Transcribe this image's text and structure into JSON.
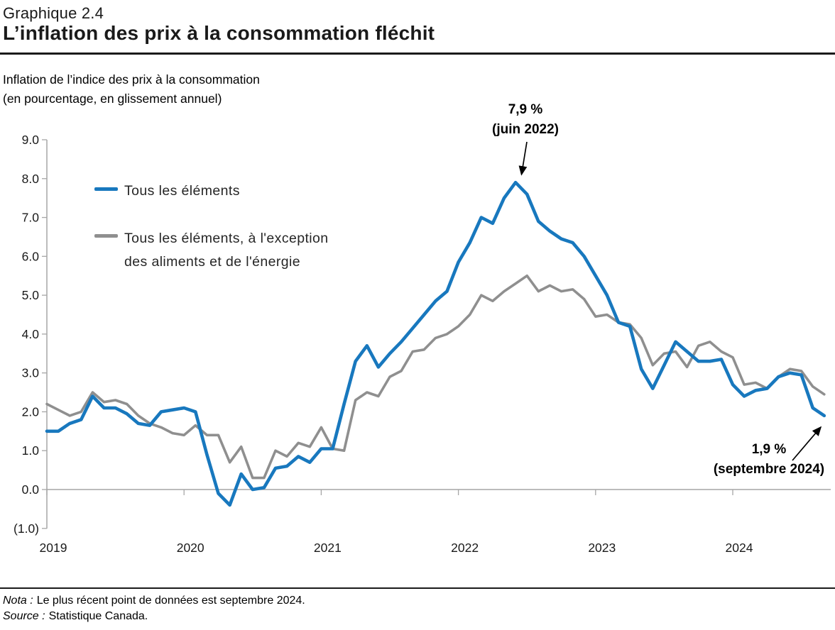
{
  "header": {
    "chart_number": "Graphique 2.4",
    "title": "L’inflation des prix à la consommation fléchit"
  },
  "subtitle": {
    "line1": "Inflation de l’indice des prix à la consommation",
    "line2": "(en pourcentage, en glissement annuel)"
  },
  "legend": [
    {
      "label": "Tous les éléments",
      "color": "#1878be"
    },
    {
      "label_line1": "Tous les éléments, à l'exception",
      "label_line2": "des aliments et de l'énergie",
      "color": "#8f8f8f"
    }
  ],
  "annotations": {
    "peak": {
      "value_label": "7,9 %",
      "date_label": "(juin 2022)",
      "month": "2022-06",
      "value": 7.9
    },
    "latest": {
      "value_label": "1,9 %",
      "date_label": "(septembre 2024)",
      "month": "2024-09",
      "value": 1.9
    }
  },
  "notes": {
    "nota_label": "Nota :",
    "nota_text": "Le plus récent point de données est septembre 2024.",
    "source_label": "Source :",
    "source_text": "Statistique Canada."
  },
  "colors": {
    "all_items_line": "#1878be",
    "core_line": "#8f8f8f",
    "axis": "#a6a6a6",
    "annotation_arrow": "#000000",
    "text": "#1a1a1a"
  },
  "chart_data": {
    "type": "line",
    "title": "L’inflation des prix à la consommation fléchit",
    "x_unit": "month",
    "x_start": "2019-01",
    "x_end": "2024-09",
    "x_tick_years": [
      {
        "label": "2019",
        "month_index": 0
      },
      {
        "label": "2020",
        "month_index": 12
      },
      {
        "label": "2021",
        "month_index": 24
      },
      {
        "label": "2022",
        "month_index": 36
      },
      {
        "label": "2023",
        "month_index": 48
      },
      {
        "label": "2024",
        "month_index": 60
      }
    ],
    "y_axis": {
      "min": -1,
      "max": 9,
      "tick_step": 1,
      "ticks": [
        {
          "v": 9,
          "label": "9.0"
        },
        {
          "v": 8,
          "label": "8.0"
        },
        {
          "v": 7,
          "label": "7.0"
        },
        {
          "v": 6,
          "label": "6.0"
        },
        {
          "v": 5,
          "label": "5.0"
        },
        {
          "v": 4,
          "label": "4.0"
        },
        {
          "v": 3,
          "label": "3.0"
        },
        {
          "v": 2,
          "label": "2.0"
        },
        {
          "v": 1,
          "label": "1.0"
        },
        {
          "v": 0,
          "label": "0.0"
        },
        {
          "v": -1,
          "label": "(1.0)"
        }
      ]
    },
    "grid": "zero-line-only",
    "legend_position": "inside-top-left",
    "series": [
      {
        "name": "Tous les éléments",
        "color": "#1878be",
        "values": [
          1.5,
          1.5,
          1.7,
          1.8,
          2.4,
          2.1,
          2.1,
          1.95,
          1.7,
          1.65,
          2.0,
          2.05,
          2.1,
          2.0,
          0.9,
          -0.1,
          -0.4,
          0.4,
          0.0,
          0.05,
          0.55,
          0.6,
          0.85,
          0.7,
          1.05,
          1.05,
          2.2,
          3.3,
          3.7,
          3.15,
          3.5,
          3.8,
          4.15,
          4.5,
          4.85,
          5.1,
          5.85,
          6.35,
          7.0,
          6.85,
          7.5,
          7.9,
          7.6,
          6.9,
          6.65,
          6.45,
          6.35,
          6.0,
          5.5,
          5.0,
          4.3,
          4.2,
          3.1,
          2.6,
          3.2,
          3.8,
          3.55,
          3.3,
          3.3,
          3.35,
          2.7,
          2.4,
          2.55,
          2.6,
          2.9,
          3.0,
          2.95,
          2.1,
          1.9
        ]
      },
      {
        "name": "Tous les éléments, à l'exception des aliments et de l'énergie",
        "color": "#8f8f8f",
        "values": [
          2.2,
          2.05,
          1.9,
          2.0,
          2.5,
          2.25,
          2.3,
          2.2,
          1.9,
          1.7,
          1.6,
          1.45,
          1.4,
          1.65,
          1.4,
          1.4,
          0.7,
          1.1,
          0.3,
          0.3,
          1.0,
          0.85,
          1.2,
          1.1,
          1.6,
          1.05,
          1.0,
          2.3,
          2.5,
          2.4,
          2.9,
          3.05,
          3.55,
          3.6,
          3.9,
          4.0,
          4.2,
          4.5,
          5.0,
          4.85,
          5.1,
          5.3,
          5.5,
          5.1,
          5.25,
          5.1,
          5.15,
          4.9,
          4.45,
          4.5,
          4.3,
          4.25,
          3.9,
          3.2,
          3.5,
          3.55,
          3.15,
          3.7,
          3.8,
          3.55,
          3.4,
          2.7,
          2.75,
          2.6,
          2.9,
          3.1,
          3.05,
          2.65,
          2.45
        ]
      }
    ]
  }
}
